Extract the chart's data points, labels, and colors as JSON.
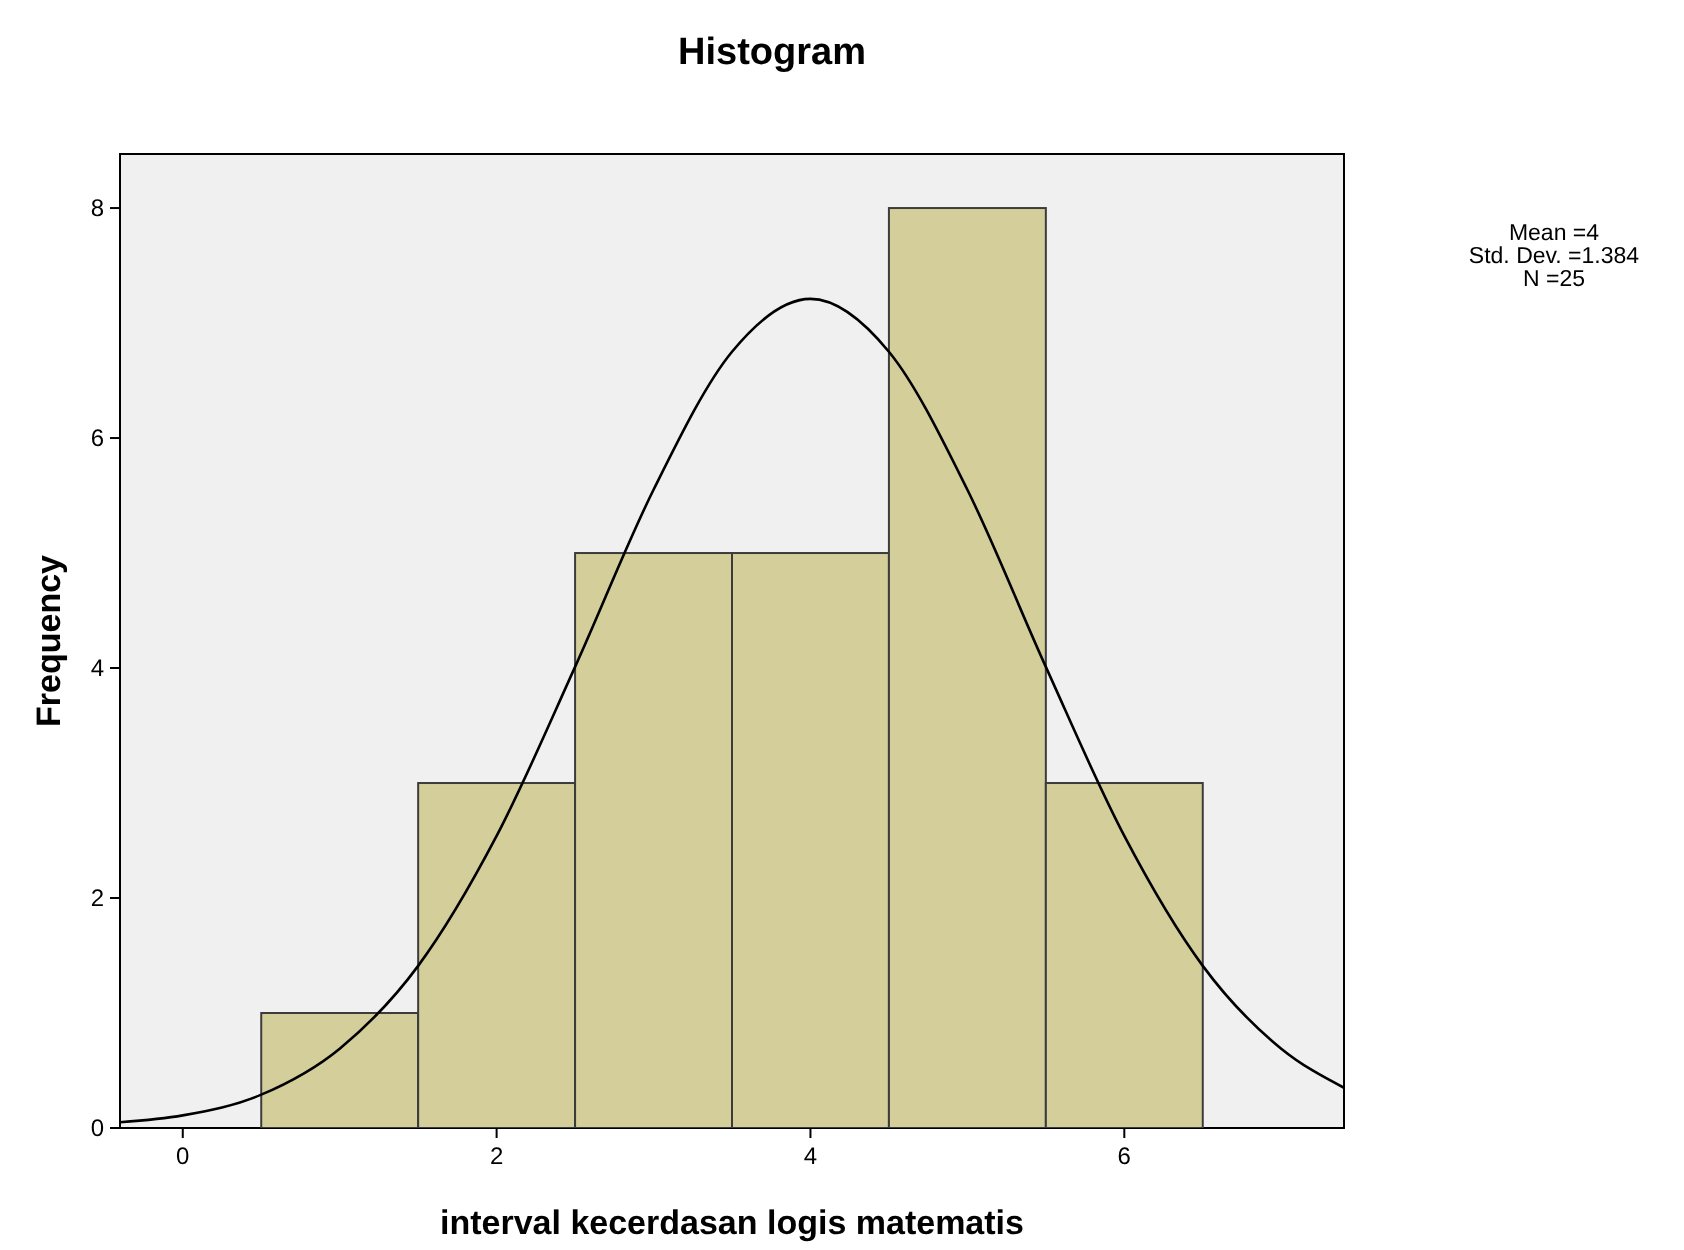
{
  "chart_data": {
    "type": "histogram",
    "title": "Histogram",
    "xlabel": "interval kecerdasan logis matematis",
    "ylabel": "Frequency",
    "bins": [
      0.5,
      1.5,
      2.5,
      3.5,
      4.5,
      5.5,
      6.5
    ],
    "values": [
      1,
      3,
      5,
      5,
      8,
      3
    ],
    "color": "#d3ce9a",
    "series": [
      {
        "type": "line",
        "color": "#000000",
        "x": [
          -0.4,
          0,
          0.5,
          1,
          1.5,
          2,
          2.5,
          3,
          3.5,
          4,
          4.5,
          5,
          5.5,
          6,
          6.5,
          7,
          7.4
        ],
        "values": [
          0.05,
          0.11,
          0.29,
          0.69,
          1.41,
          2.54,
          4.01,
          5.55,
          6.75,
          7.21,
          6.75,
          5.55,
          4.01,
          2.54,
          1.41,
          0.69,
          0.35
        ]
      }
    ],
    "marker": "none",
    "line_style": "solid",
    "xlim": [
      -0.4,
      7.4
    ],
    "xticks": [
      0,
      2,
      4,
      6
    ],
    "ylim": [
      0,
      8.47
    ],
    "yticks": [
      0,
      2,
      4,
      6,
      8
    ],
    "grid": false,
    "annotations": [
      "Mean =4",
      "Std. Dev. =1.384",
      "N =25"
    ]
  }
}
